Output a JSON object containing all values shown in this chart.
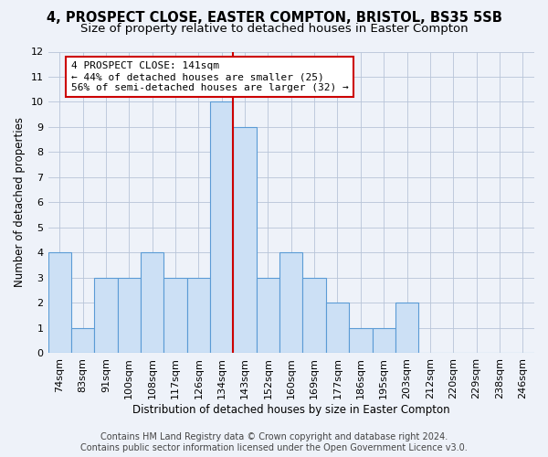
{
  "title": "4, PROSPECT CLOSE, EASTER COMPTON, BRISTOL, BS35 5SB",
  "subtitle": "Size of property relative to detached houses in Easter Compton",
  "xlabel": "Distribution of detached houses by size in Easter Compton",
  "ylabel": "Number of detached properties",
  "footer_line1": "Contains HM Land Registry data © Crown copyright and database right 2024.",
  "footer_line2": "Contains public sector information licensed under the Open Government Licence v3.0.",
  "categories": [
    "74sqm",
    "83sqm",
    "91sqm",
    "100sqm",
    "108sqm",
    "117sqm",
    "126sqm",
    "134sqm",
    "143sqm",
    "152sqm",
    "160sqm",
    "169sqm",
    "177sqm",
    "186sqm",
    "195sqm",
    "203sqm",
    "212sqm",
    "220sqm",
    "229sqm",
    "238sqm",
    "246sqm"
  ],
  "values": [
    4,
    1,
    3,
    3,
    4,
    3,
    3,
    10,
    9,
    3,
    4,
    3,
    2,
    1,
    1,
    2,
    0,
    0,
    0,
    0,
    0
  ],
  "bar_color": "#cce0f5",
  "bar_edge_color": "#5b9bd5",
  "highlight_index": 7,
  "vline_color": "#cc0000",
  "ylim": [
    0,
    12
  ],
  "yticks": [
    0,
    1,
    2,
    3,
    4,
    5,
    6,
    7,
    8,
    9,
    10,
    11,
    12
  ],
  "annotation_text": "4 PROSPECT CLOSE: 141sqm\n← 44% of detached houses are smaller (25)\n56% of semi-detached houses are larger (32) →",
  "annotation_box_color": "#cc0000",
  "background_color": "#eef2f9",
  "grid_color": "#b8c4d8",
  "title_fontsize": 10.5,
  "subtitle_fontsize": 9.5,
  "axis_label_fontsize": 8.5,
  "tick_fontsize": 8,
  "footer_fontsize": 7,
  "annotation_fontsize": 8
}
